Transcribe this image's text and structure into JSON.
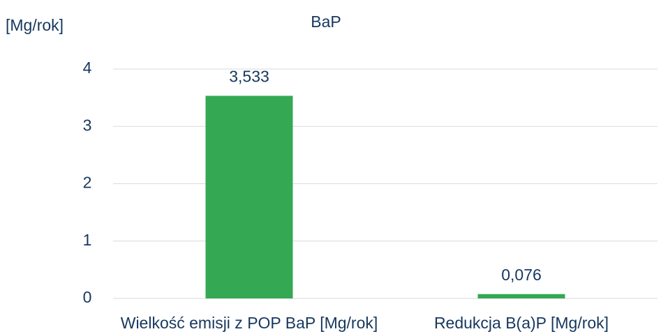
{
  "chart_data": {
    "type": "bar",
    "title": "BaP",
    "y_label": "[Mg/rok]",
    "categories": [
      "Wielkość emisji z POP BaP [Mg/rok]",
      "Redukcja B(a)P [Mg/rok]"
    ],
    "values": [
      3.533,
      0.076
    ],
    "value_labels": [
      "3,533",
      "0,076"
    ],
    "color": "#34a853",
    "ylim": [
      0,
      4
    ],
    "yticks": [
      0,
      1,
      2,
      3,
      4
    ],
    "grid": true
  }
}
